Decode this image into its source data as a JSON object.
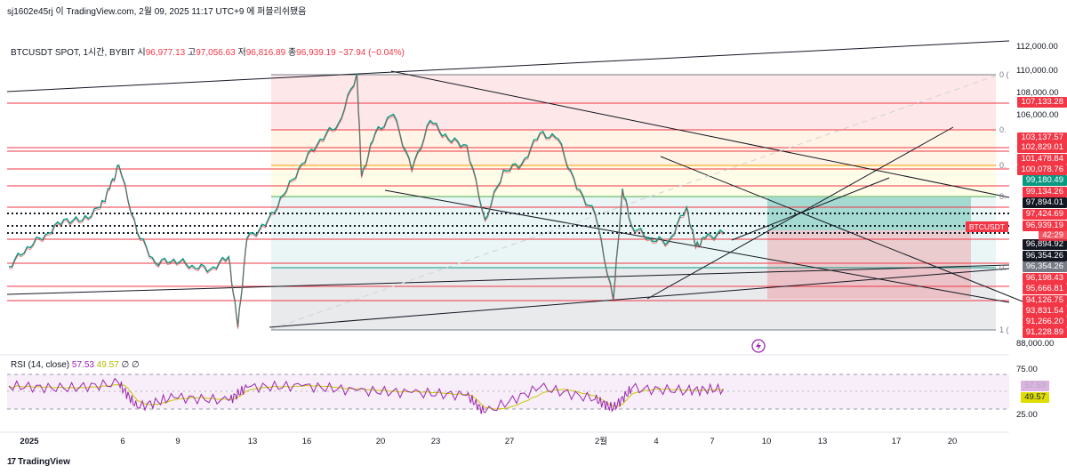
{
  "header": {
    "author_line": "sj1602e45rj 이 TradingView.com, 2월 09, 2025 11:17 UTC+9 에 퍼블리쉬됐음"
  },
  "symbol": {
    "name": "BTCUSDT SPOT, 1시간, BYBIT",
    "open_label": "시",
    "open": "96,977.13",
    "high_label": "고",
    "high": "97,056.63",
    "low_label": "저",
    "low": "96,816.89",
    "close_label": "종",
    "close": "96,939.19",
    "change": "−37.94 (−0.04%)"
  },
  "rsi": {
    "label": "RSI (14, close)",
    "rsi_value": "57.53",
    "ma_value": "49.57",
    "extra1": "∅",
    "extra2": "∅",
    "levels": [
      "75.00",
      "25.00"
    ]
  },
  "brand": {
    "logo": "17",
    "name": "TradingView"
  },
  "colors": {
    "up": "#089981",
    "down": "#f23645",
    "accent_red": "#f23645",
    "accent_green": "#089981",
    "dark": "#131722",
    "rsi": "#9c27b0",
    "rsi_ma": "#c8c800"
  },
  "chart_data": {
    "type": "line",
    "title": "BTCUSDT SPOT, 1시간, BYBIT",
    "x_ticks": [
      "2025",
      "6",
      "9",
      "13",
      "16",
      "20",
      "23",
      "27",
      "2월",
      "4",
      "7",
      "10",
      "13",
      "17",
      "20"
    ],
    "y_ticks": [
      "112,000.00",
      "110,000.00",
      "108,000.00",
      "106,000.00",
      "88,000.00"
    ],
    "ylim": [
      88000,
      112500
    ],
    "price_path": [
      {
        "x": "2025-01-01",
        "y": 94200
      },
      {
        "x": "2025-01-02",
        "y": 95800
      },
      {
        "x": "2025-01-03",
        "y": 96800
      },
      {
        "x": "2025-01-04",
        "y": 98000
      },
      {
        "x": "2025-01-05",
        "y": 97900
      },
      {
        "x": "2025-01-06",
        "y": 99000
      },
      {
        "x": "2025-01-06 12:00",
        "y": 100500
      },
      {
        "x": "2025-01-07",
        "y": 102400
      },
      {
        "x": "2025-01-08",
        "y": 97000
      },
      {
        "x": "2025-01-09",
        "y": 94500
      },
      {
        "x": "2025-01-10",
        "y": 94800
      },
      {
        "x": "2025-01-11",
        "y": 94300
      },
      {
        "x": "2025-01-12",
        "y": 94000
      },
      {
        "x": "2025-01-13",
        "y": 95000
      },
      {
        "x": "2025-01-13 12:00",
        "y": 89300
      },
      {
        "x": "2025-01-14",
        "y": 96500
      },
      {
        "x": "2025-01-15",
        "y": 97500
      },
      {
        "x": "2025-01-16",
        "y": 100000
      },
      {
        "x": "2025-01-17",
        "y": 102500
      },
      {
        "x": "2025-01-18",
        "y": 104500
      },
      {
        "x": "2025-01-19",
        "y": 105800
      },
      {
        "x": "2025-01-20",
        "y": 109800
      },
      {
        "x": "2025-01-20 06:00",
        "y": 101500
      },
      {
        "x": "2025-01-21",
        "y": 105000
      },
      {
        "x": "2025-01-22",
        "y": 106500
      },
      {
        "x": "2025-01-23",
        "y": 102000
      },
      {
        "x": "2025-01-24",
        "y": 106000
      },
      {
        "x": "2025-01-25",
        "y": 104500
      },
      {
        "x": "2025-01-26",
        "y": 104000
      },
      {
        "x": "2025-01-27",
        "y": 98000
      },
      {
        "x": "2025-01-28",
        "y": 102000
      },
      {
        "x": "2025-01-29",
        "y": 102500
      },
      {
        "x": "2025-01-30",
        "y": 105000
      },
      {
        "x": "2025-01-31",
        "y": 104500
      },
      {
        "x": "2025-02-01",
        "y": 100500
      },
      {
        "x": "2025-02-02",
        "y": 98500
      },
      {
        "x": "2025-02-03",
        "y": 91500
      },
      {
        "x": "2025-02-03 12:00",
        "y": 100500
      },
      {
        "x": "2025-02-04",
        "y": 97500
      },
      {
        "x": "2025-02-05",
        "y": 96500
      },
      {
        "x": "2025-02-06",
        "y": 96200
      },
      {
        "x": "2025-02-07",
        "y": 99000
      },
      {
        "x": "2025-02-07 12:00",
        "y": 95800
      },
      {
        "x": "2025-02-08",
        "y": 96500
      },
      {
        "x": "2025-02-09",
        "y": 96939
      }
    ],
    "price_labels": [
      {
        "y": 107133.28,
        "label": "107,133.28",
        "kind": "red"
      },
      {
        "y": 103137.57,
        "label": "103,137.57",
        "kind": "red"
      },
      {
        "y": 102829.01,
        "label": "102,829.01",
        "kind": "red"
      },
      {
        "y": 101478.84,
        "label": "101,478.84",
        "kind": "red"
      },
      {
        "y": 100078.76,
        "label": "100,078.76",
        "kind": "red"
      },
      {
        "y": 99180.49,
        "label": "99,180.49",
        "kind": "green"
      },
      {
        "y": 99134.26,
        "label": "99,134.26",
        "kind": "red"
      },
      {
        "y": 97894.01,
        "label": "97,894.01",
        "kind": "dark"
      },
      {
        "y": 97424.69,
        "label": "97,424.69",
        "kind": "red"
      },
      {
        "y": 96939.19,
        "label": "96,939.19",
        "kind": "red"
      },
      {
        "y": 96894.92,
        "label": "96,894.92",
        "kind": "dark"
      },
      {
        "y": 96354.26,
        "label": "96,354.26",
        "kind": "dark"
      },
      {
        "y": 96354.26,
        "label": "96,354.26",
        "kind": "gray"
      },
      {
        "y": 96198.43,
        "label": "96,198.43",
        "kind": "red"
      },
      {
        "y": 95666.81,
        "label": "95,666.81",
        "kind": "red"
      },
      {
        "y": 94126.75,
        "label": "94,126.75",
        "kind": "red"
      },
      {
        "y": 93831.54,
        "label": "93,831.54",
        "kind": "red"
      },
      {
        "y": 91266.2,
        "label": "91,266.20",
        "kind": "red"
      },
      {
        "y": 91228.89,
        "label": "91,228.89",
        "kind": "red"
      }
    ],
    "current_price_tag": {
      "symbol": "BTCUSDT",
      "price": "96,939.19",
      "countdown": "42:29"
    },
    "fib_labels": [
      "0 (",
      "0.",
      "0.",
      "0.",
      "0.",
      "1 ("
    ],
    "rsi_series": [
      {
        "x": "2025-01-01",
        "y": 62
      },
      {
        "x": "2025-01-04",
        "y": 58
      },
      {
        "x": "2025-01-07",
        "y": 66
      },
      {
        "x": "2025-01-08",
        "y": 30
      },
      {
        "x": "2025-01-10",
        "y": 45
      },
      {
        "x": "2025-01-13",
        "y": 40
      },
      {
        "x": "2025-01-14",
        "y": 60
      },
      {
        "x": "2025-01-17",
        "y": 62
      },
      {
        "x": "2025-01-20",
        "y": 55
      },
      {
        "x": "2025-01-23",
        "y": 52
      },
      {
        "x": "2025-01-26",
        "y": 48
      },
      {
        "x": "2025-01-27",
        "y": 22
      },
      {
        "x": "2025-01-30",
        "y": 60
      },
      {
        "x": "2025-02-02",
        "y": 42
      },
      {
        "x": "2025-02-03",
        "y": 28
      },
      {
        "x": "2025-02-04",
        "y": 58
      },
      {
        "x": "2025-02-07",
        "y": 55
      },
      {
        "x": "2025-02-09",
        "y": 57.53
      }
    ],
    "rsi_ylim": [
      10,
      90
    ]
  }
}
